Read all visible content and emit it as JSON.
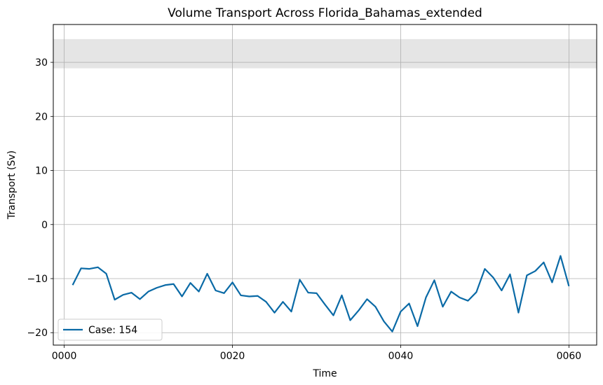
{
  "chart_data": {
    "type": "line",
    "title": "Volume Transport Across Florida_Bahamas_extended",
    "xlabel": "Time",
    "ylabel": "Transport (Sv)",
    "xlim": [
      -1.3,
      63.3
    ],
    "ylim": [
      -22.3,
      37
    ],
    "x_ticks": [
      0,
      20,
      40,
      60
    ],
    "x_tick_labels": [
      "0000",
      "0020",
      "0040",
      "0060"
    ],
    "y_ticks": [
      -20,
      -10,
      0,
      10,
      20,
      30
    ],
    "y_tick_labels": [
      "−20",
      "−10",
      "0",
      "10",
      "20",
      "30"
    ],
    "grid": true,
    "legend_position": "lower-left",
    "reference_band": {
      "ymin": 28.9,
      "ymax": 34.3,
      "color": "#e5e5e5"
    },
    "series": [
      {
        "name": "Case: 154",
        "color": "#0a6aa6",
        "x": [
          1,
          2,
          3,
          4,
          5,
          6,
          7,
          8,
          9,
          10,
          11,
          12,
          13,
          14,
          15,
          16,
          17,
          18,
          19,
          20,
          21,
          22,
          23,
          24,
          25,
          26,
          27,
          28,
          29,
          30,
          31,
          32,
          33,
          34,
          35,
          36,
          37,
          38,
          39,
          40,
          41,
          42,
          43,
          44,
          45,
          46,
          47,
          48,
          49,
          50,
          51,
          52,
          53,
          54,
          55,
          56,
          57,
          58,
          59,
          60
        ],
        "values": [
          -11.2,
          -8.1,
          -8.2,
          -7.9,
          -9.1,
          -13.9,
          -13.0,
          -12.6,
          -13.8,
          -12.4,
          -11.7,
          -11.2,
          -11.0,
          -13.3,
          -10.8,
          -12.4,
          -9.1,
          -12.2,
          -12.7,
          -10.7,
          -13.1,
          -13.3,
          -13.2,
          -14.3,
          -16.3,
          -14.3,
          -16.1,
          -10.2,
          -12.6,
          -12.7,
          -14.8,
          -16.8,
          -13.1,
          -17.7,
          -15.9,
          -13.8,
          -15.2,
          -17.9,
          -19.8,
          -16.1,
          -14.6,
          -18.8,
          -13.5,
          -10.3,
          -15.2,
          -12.4,
          -13.5,
          -14.1,
          -12.5,
          -8.2,
          -9.8,
          -12.2,
          -9.2,
          -16.3,
          -9.4,
          -8.6,
          -7.0,
          -10.7,
          -5.8,
          -11.4
        ]
      }
    ]
  }
}
